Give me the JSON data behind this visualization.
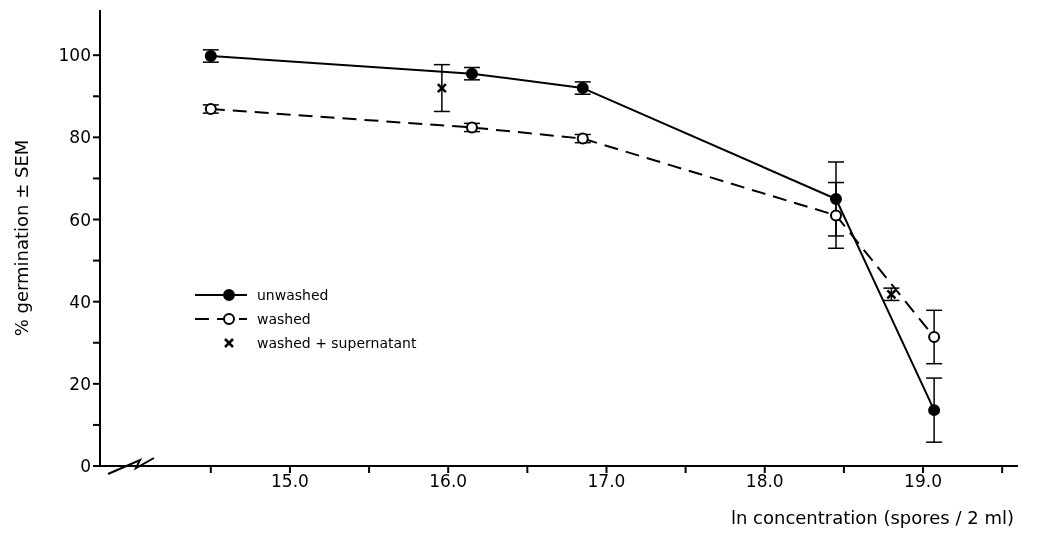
{
  "chart_data": {
    "type": "line",
    "xlabel": "ln concentration (spores / 2 ml)",
    "ylabel": "% germination ± SEM",
    "xlim": [
      13.8,
      19.6
    ],
    "xticks": [
      {
        "value": 14.5,
        "label": null
      },
      {
        "value": 15,
        "label": "15.0"
      },
      {
        "value": 15.5,
        "label": null
      },
      {
        "value": 16,
        "label": "16.0"
      },
      {
        "value": 16.5,
        "label": null
      },
      {
        "value": 17,
        "label": "17.0"
      },
      {
        "value": 17.5,
        "label": null
      },
      {
        "value": 18,
        "label": "18.0"
      },
      {
        "value": 18.5,
        "label": null
      },
      {
        "value": 19,
        "label": "19.0"
      },
      {
        "value": 19.5,
        "label": null
      }
    ],
    "ylim": [
      0,
      111
    ],
    "yticks": [
      0,
      {
        "value": 10,
        "label": null
      },
      20,
      {
        "value": 30,
        "label": null
      },
      40,
      {
        "value": 50,
        "label": null
      },
      60,
      {
        "value": 70,
        "label": null
      },
      80,
      {
        "value": 90,
        "label": null
      },
      100
    ],
    "grid": false,
    "legend": "left",
    "series": [
      {
        "name": "unwashed",
        "color": "#000000",
        "marker": "circle",
        "line_style": "solid",
        "x": [
          14.5,
          16.15,
          16.85,
          18.45,
          19.07
        ],
        "values": [
          99.8,
          95.5,
          92,
          65,
          13.6
        ],
        "errors": [
          1.5,
          1.5,
          1.5,
          9,
          7.8
        ]
      },
      {
        "name": "washed",
        "color": "#000000",
        "marker": "circle",
        "line_style": "dashed",
        "x": [
          14.5,
          16.15,
          16.85,
          18.45,
          19.07
        ],
        "values": [
          86.9,
          82.4,
          79.7,
          61,
          31.4
        ],
        "errors": [
          1,
          1,
          1,
          8,
          6.5
        ]
      },
      {
        "name": "washed + supernatant",
        "type": "scatter",
        "color": "#000000",
        "marker": "cross",
        "x": [
          15.96,
          18.8
        ],
        "values": [
          92,
          41.8
        ],
        "errors": [
          5.7,
          1.5
        ]
      }
    ]
  }
}
